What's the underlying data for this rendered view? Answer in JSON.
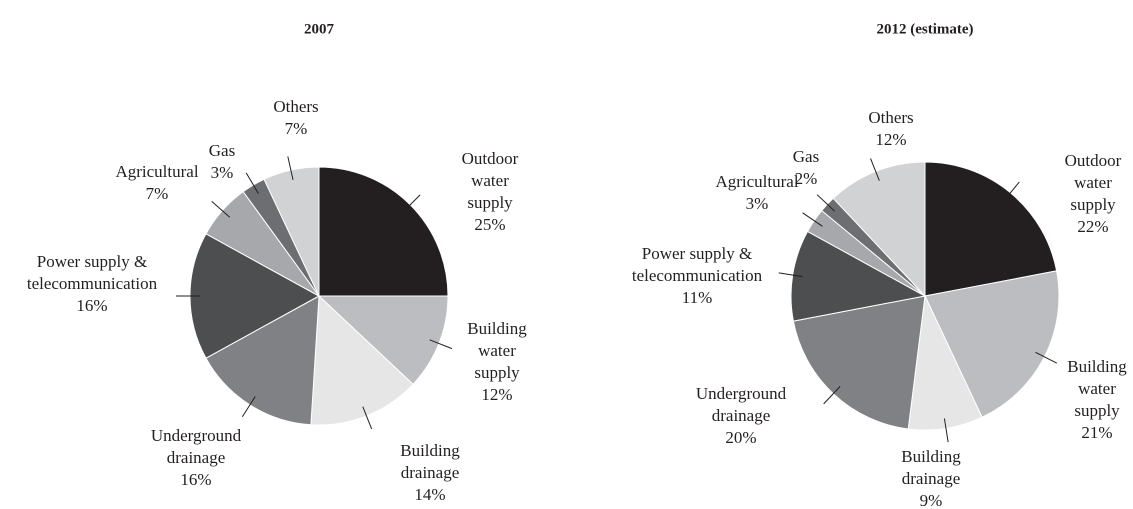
{
  "chart_data": [
    {
      "type": "pie",
      "title": "2007",
      "categories": [
        "Outdoor\nwater\nsupply",
        "Building\nwater\nsupply",
        "Building\ndrainage",
        "Underground\ndrainage",
        "Power supply &\ntelecommunication",
        "Agricultural",
        "Gas",
        "Others"
      ],
      "values": [
        25,
        12,
        14,
        16,
        16,
        7,
        3,
        7
      ],
      "value_labels": [
        "25%",
        "12%",
        "14%",
        "16%",
        "16%",
        "7%",
        "3%",
        "7%"
      ],
      "colors": [
        "#231f20",
        "#bcbdc0",
        "#e6e6e7",
        "#808184",
        "#4d4e50",
        "#a7a8ab",
        "#6d6e71",
        "#d1d2d4"
      ]
    },
    {
      "type": "pie",
      "title": "2012 (estimate)",
      "categories": [
        "Outdoor\nwater\nsupply",
        "Building\nwater\nsupply",
        "Building\ndrainage",
        "Underground\ndrainage",
        "Power supply &\ntelecommunication",
        "Agricultural",
        "Gas",
        "Others"
      ],
      "values": [
        22,
        21,
        9,
        20,
        11,
        3,
        2,
        12
      ],
      "value_labels": [
        "22%",
        "21%",
        "9%",
        "20%",
        "11%",
        "3%",
        "2%",
        "12%"
      ],
      "colors": [
        "#231f20",
        "#bcbdc0",
        "#e6e6e7",
        "#808184",
        "#4d4e50",
        "#a7a8ab",
        "#6d6e71",
        "#d1d2d4"
      ]
    }
  ]
}
